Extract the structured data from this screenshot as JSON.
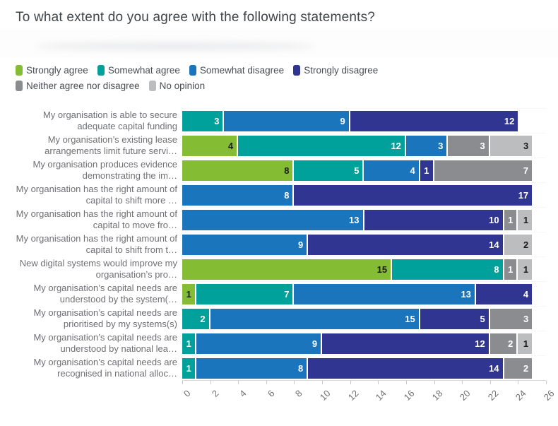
{
  "title": "To what extent do you agree with the following statements?",
  "colors": {
    "strongly_agree": "#84BD34",
    "somewhat_agree": "#00A09B",
    "somewhat_disagree": "#1B75BC",
    "strongly_disagree": "#2F3590",
    "neither": "#8A8C8F",
    "no_opinion": "#BBBDBF"
  },
  "legend": {
    "items": [
      {
        "key": "strongly_agree",
        "label": "Strongly agree"
      },
      {
        "key": "somewhat_agree",
        "label": "Somewhat agree"
      },
      {
        "key": "somewhat_disagree",
        "label": "Somewhat disagree"
      },
      {
        "key": "strongly_disagree",
        "label": "Strongly disagree"
      },
      {
        "key": "neither",
        "label": "Neither agree nor disagree"
      },
      {
        "key": "no_opinion",
        "label": "No opinion"
      }
    ]
  },
  "chart_data": {
    "type": "bar",
    "orientation": "horizontal",
    "stacked": true,
    "title": "To what extent do you agree with the following statements?",
    "xlabel": "",
    "ylabel": "",
    "xlim": [
      0,
      26
    ],
    "x_ticks": [
      0,
      2,
      4,
      6,
      8,
      10,
      12,
      14,
      16,
      18,
      20,
      22,
      24,
      26
    ],
    "grid": "off",
    "legend_position": "top",
    "series_order": [
      "strongly_agree",
      "somewhat_agree",
      "somewhat_disagree",
      "strongly_disagree",
      "neither",
      "no_opinion"
    ],
    "value_label_dark_keys": [
      "strongly_agree",
      "no_opinion"
    ],
    "rows": [
      {
        "label": "My organisation is able to secure adequate capital funding",
        "segments": [
          {
            "key": "somewhat_agree",
            "value": 3
          },
          {
            "key": "somewhat_disagree",
            "value": 9
          },
          {
            "key": "strongly_disagree",
            "value": 12
          }
        ]
      },
      {
        "label": "My organisation’s existing lease arrangements limit future servi…",
        "segments": [
          {
            "key": "strongly_agree",
            "value": 4
          },
          {
            "key": "somewhat_agree",
            "value": 12
          },
          {
            "key": "somewhat_disagree",
            "value": 3
          },
          {
            "key": "neither",
            "value": 3
          },
          {
            "key": "no_opinion",
            "value": 3
          }
        ]
      },
      {
        "label": "My organisation produces evidence demonstrating the im…",
        "segments": [
          {
            "key": "strongly_agree",
            "value": 8
          },
          {
            "key": "somewhat_agree",
            "value": 5
          },
          {
            "key": "somewhat_disagree",
            "value": 4
          },
          {
            "key": "strongly_disagree",
            "value": 1
          },
          {
            "key": "neither",
            "value": 7
          }
        ]
      },
      {
        "label": "My organisation has the right amount of capital to shift more …",
        "segments": [
          {
            "key": "somewhat_disagree",
            "value": 8
          },
          {
            "key": "strongly_disagree",
            "value": 17
          }
        ]
      },
      {
        "label": "My organisation has the right amount of capital to move fro…",
        "segments": [
          {
            "key": "somewhat_disagree",
            "value": 13
          },
          {
            "key": "strongly_disagree",
            "value": 10
          },
          {
            "key": "neither",
            "value": 1
          },
          {
            "key": "no_opinion",
            "value": 1
          }
        ]
      },
      {
        "label": "My organisation has the right amount of capital to shift from t…",
        "segments": [
          {
            "key": "somewhat_disagree",
            "value": 9
          },
          {
            "key": "strongly_disagree",
            "value": 14
          },
          {
            "key": "no_opinion",
            "value": 2
          }
        ]
      },
      {
        "label": "New digital systems would improve my organisation’s pro…",
        "segments": [
          {
            "key": "strongly_agree",
            "value": 15
          },
          {
            "key": "somewhat_agree",
            "value": 8
          },
          {
            "key": "neither",
            "value": 1
          },
          {
            "key": "no_opinion",
            "value": 1
          }
        ]
      },
      {
        "label": "My organisation’s capital needs are understood by the system(…",
        "segments": [
          {
            "key": "strongly_agree",
            "value": 1
          },
          {
            "key": "somewhat_agree",
            "value": 7
          },
          {
            "key": "somewhat_disagree",
            "value": 13
          },
          {
            "key": "strongly_disagree",
            "value": 4
          }
        ]
      },
      {
        "label": "My organisation’s capital needs are prioritised by my systems(s)",
        "segments": [
          {
            "key": "somewhat_agree",
            "value": 2
          },
          {
            "key": "somewhat_disagree",
            "value": 15
          },
          {
            "key": "strongly_disagree",
            "value": 5
          },
          {
            "key": "neither",
            "value": 3
          }
        ]
      },
      {
        "label": "My organisation’s capital needs are understood by national lea…",
        "segments": [
          {
            "key": "somewhat_agree",
            "value": 1
          },
          {
            "key": "somewhat_disagree",
            "value": 9
          },
          {
            "key": "strongly_disagree",
            "value": 12
          },
          {
            "key": "neither",
            "value": 2
          },
          {
            "key": "no_opinion",
            "value": 1
          }
        ]
      },
      {
        "label": "My organisation’s capital needs are recognised in national alloc…",
        "segments": [
          {
            "key": "somewhat_agree",
            "value": 1
          },
          {
            "key": "somewhat_disagree",
            "value": 8
          },
          {
            "key": "strongly_disagree",
            "value": 14
          },
          {
            "key": "neither",
            "value": 2
          }
        ]
      }
    ]
  }
}
